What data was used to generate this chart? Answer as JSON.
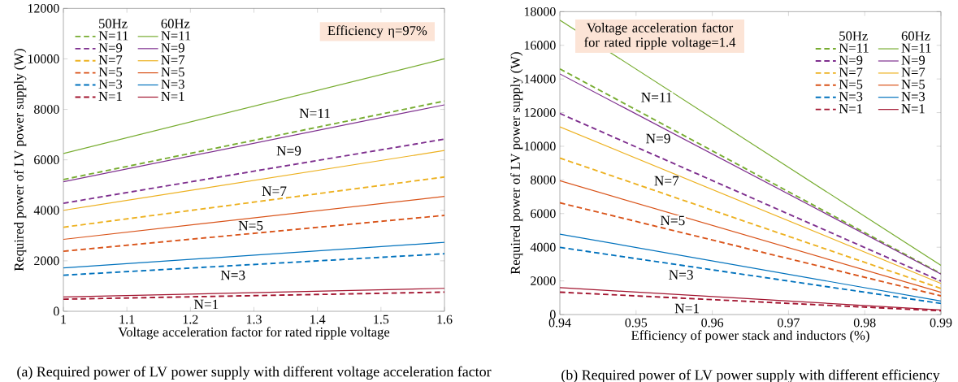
{
  "chart_data": [
    {
      "type": "line",
      "title": "(a) Required power of LV power supply with different voltage acceleration factor",
      "xlabel": "Voltage acceleration factor for rated ripple voltage",
      "ylabel": "Required power of LV power supply (W)",
      "x": [
        1,
        1.6
      ],
      "xlim": [
        1,
        1.6
      ],
      "xticks": [
        1,
        1.1,
        1.2,
        1.3,
        1.4,
        1.5,
        1.6
      ],
      "ylim": [
        0,
        12000
      ],
      "yticks": [
        0,
        2000,
        4000,
        6000,
        8000,
        10000,
        12000
      ],
      "legend": "top left",
      "series": [
        {
          "name": "N=11",
          "color": "#77ac30",
          "line_style": "dashed",
          "values": [
            5220,
            8330
          ]
        },
        {
          "name": "N=9",
          "color": "#7e2f8e",
          "line_style": "dashed",
          "values": [
            4280,
            6820
          ]
        },
        {
          "name": "N=7",
          "color": "#edb120",
          "line_style": "dashed",
          "values": [
            3330,
            5320
          ]
        },
        {
          "name": "N=5",
          "color": "#d95319",
          "line_style": "dashed",
          "values": [
            2380,
            3800
          ]
        },
        {
          "name": "N=3",
          "color": "#0072bd",
          "line_style": "dashed",
          "values": [
            1430,
            2280
          ]
        },
        {
          "name": "N=1",
          "color": "#a2142f",
          "line_style": "dashed",
          "values": [
            480,
            760
          ]
        },
        {
          "name": "N=11",
          "color": "#77ac30",
          "line_style": "solid",
          "values": [
            6250,
            10000
          ]
        },
        {
          "name": "N=9",
          "color": "#7e2f8e",
          "line_style": "solid",
          "values": [
            5130,
            8180
          ]
        },
        {
          "name": "N=7",
          "color": "#edb120",
          "line_style": "solid",
          "values": [
            4000,
            6370
          ]
        },
        {
          "name": "N=5",
          "color": "#d95319",
          "line_style": "solid",
          "values": [
            2850,
            4550
          ]
        },
        {
          "name": "N=3",
          "color": "#0072bd",
          "line_style": "solid",
          "values": [
            1720,
            2730
          ]
        },
        {
          "name": "N=1",
          "color": "#a2142f",
          "line_style": "solid",
          "values": [
            570,
            910
          ]
        }
      ],
      "annotations": [
        "50Hz",
        "60Hz",
        "Efficiency η=97%",
        {
          "text": "N=11",
          "x": 1.396,
          "y": 7845
        },
        {
          "text": "N=9",
          "x": 1.355,
          "y": 6356
        },
        {
          "text": "N=7",
          "x": 1.332,
          "y": 4758
        },
        {
          "text": "N=5",
          "x": 1.295,
          "y": 3390
        },
        {
          "text": "N=3",
          "x": 1.267,
          "y": 1429
        },
        {
          "text": "N=1",
          "x": 1.225,
          "y": 278
        }
      ]
    },
    {
      "type": "line",
      "title": "(b) Required power of LV power supply with different efficiency",
      "xlabel": "Efficiency of power stack and inductors (%)",
      "ylabel": "Required power of LV power supply (W)",
      "x": [
        0.94,
        0.99
      ],
      "xlim": [
        0.94,
        0.99
      ],
      "xticks": [
        0.94,
        0.95,
        0.96,
        0.97,
        0.98,
        0.99
      ],
      "ylim": [
        0,
        18000
      ],
      "yticks": [
        0,
        2000,
        4000,
        6000,
        8000,
        10000,
        12000,
        14000,
        16000,
        18000
      ],
      "legend": "top right",
      "series": [
        {
          "name": "N=11",
          "color": "#77ac30",
          "line_style": "dashed",
          "values": [
            14600,
            2430
          ]
        },
        {
          "name": "N=9",
          "color": "#7e2f8e",
          "line_style": "dashed",
          "values": [
            11950,
            1990
          ]
        },
        {
          "name": "N=7",
          "color": "#edb120",
          "line_style": "dashed",
          "values": [
            9300,
            1550
          ]
        },
        {
          "name": "N=5",
          "color": "#d95319",
          "line_style": "dashed",
          "values": [
            6640,
            1110
          ]
        },
        {
          "name": "N=3",
          "color": "#0072bd",
          "line_style": "dashed",
          "values": [
            3990,
            660
          ]
        },
        {
          "name": "N=1",
          "color": "#a2142f",
          "line_style": "dashed",
          "values": [
            1330,
            220
          ]
        },
        {
          "name": "N=11",
          "color": "#77ac30",
          "line_style": "solid",
          "values": [
            17500,
            2920
          ]
        },
        {
          "name": "N=9",
          "color": "#7e2f8e",
          "line_style": "solid",
          "values": [
            14300,
            2400
          ]
        },
        {
          "name": "N=7",
          "color": "#edb120",
          "line_style": "solid",
          "values": [
            11150,
            1850
          ]
        },
        {
          "name": "N=5",
          "color": "#d95319",
          "line_style": "solid",
          "values": [
            7950,
            1320
          ]
        },
        {
          "name": "N=3",
          "color": "#0072bd",
          "line_style": "solid",
          "values": [
            4780,
            800
          ]
        },
        {
          "name": "N=1",
          "color": "#a2142f",
          "line_style": "solid",
          "values": [
            1600,
            270
          ]
        }
      ],
      "annotations": [
        "50Hz",
        "60Hz",
        "Voltage acceleration factor for rated ripple voltage=1.4",
        {
          "text": "N=11",
          "x": 0.9527,
          "y": 12909
        },
        {
          "text": "N=9",
          "x": 0.9529,
          "y": 10455
        },
        {
          "text": "N=7",
          "x": 0.954,
          "y": 7945
        },
        {
          "text": "N=5",
          "x": 0.9548,
          "y": 5582
        },
        {
          "text": "N=3",
          "x": 0.9559,
          "y": 2364
        },
        {
          "text": "N=1",
          "x": 0.9567,
          "y": 364
        }
      ]
    }
  ]
}
